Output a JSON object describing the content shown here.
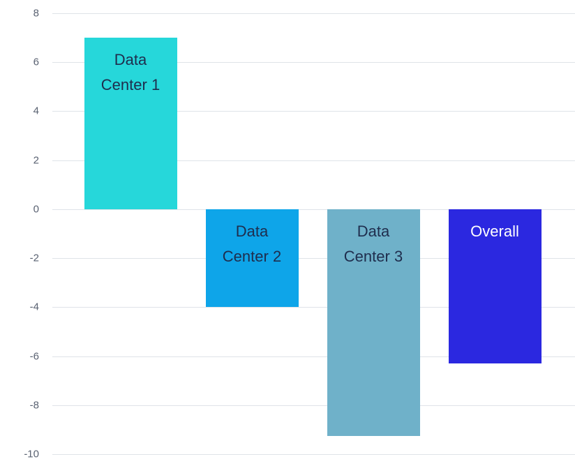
{
  "chart_data": {
    "type": "bar",
    "categories": [
      "Data Center 1",
      "Data Center 2",
      "Data Center 3",
      "Overall"
    ],
    "values": [
      7,
      -4,
      -9.25,
      -6.3
    ],
    "colors": [
      "#26d7da",
      "#0ea5e9",
      "#6fb1c9",
      "#2b28e0"
    ],
    "label_colors": [
      "#1f2d4d",
      "#1f2d4d",
      "#1f2d4d",
      "#ffffff"
    ],
    "ylim": [
      -10,
      8
    ],
    "yticks": [
      -10,
      -8,
      -6,
      -4,
      -2,
      0,
      2,
      4,
      6,
      8
    ],
    "grid": true
  }
}
